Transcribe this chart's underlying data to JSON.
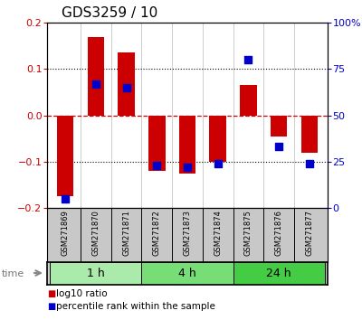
{
  "title": "GDS3259 / 10",
  "samples": [
    "GSM271869",
    "GSM271870",
    "GSM271871",
    "GSM271872",
    "GSM271873",
    "GSM271874",
    "GSM271875",
    "GSM271876",
    "GSM271877"
  ],
  "log10_ratio": [
    -0.175,
    0.168,
    0.135,
    -0.12,
    -0.125,
    -0.1,
    0.065,
    -0.045,
    -0.08
  ],
  "percentile_rank": [
    5,
    67,
    65,
    23,
    22,
    24,
    80,
    33,
    24
  ],
  "groups": [
    {
      "label": "1 h",
      "indices": [
        0,
        1,
        2
      ],
      "color": "#aaeaaa"
    },
    {
      "label": "4 h",
      "indices": [
        3,
        4,
        5
      ],
      "color": "#77dd77"
    },
    {
      "label": "24 h",
      "indices": [
        6,
        7,
        8
      ],
      "color": "#44cc44"
    }
  ],
  "ylim": [
    -0.2,
    0.2
  ],
  "yticks_left": [
    -0.2,
    -0.1,
    0,
    0.1,
    0.2
  ],
  "yticks_right": [
    0,
    25,
    50,
    75,
    100
  ],
  "red_color": "#cc0000",
  "blue_color": "#0000cc",
  "bar_width": 0.55,
  "dot_size": 28,
  "background_color": "#ffffff",
  "label_bg": "#c8c8c8",
  "zero_line_color": "#cc0000",
  "dotted_line_color": "#000000",
  "title_fontsize": 11,
  "tick_fontsize": 8,
  "sample_fontsize": 6,
  "group_fontsize": 9,
  "legend_fontsize": 7.5
}
